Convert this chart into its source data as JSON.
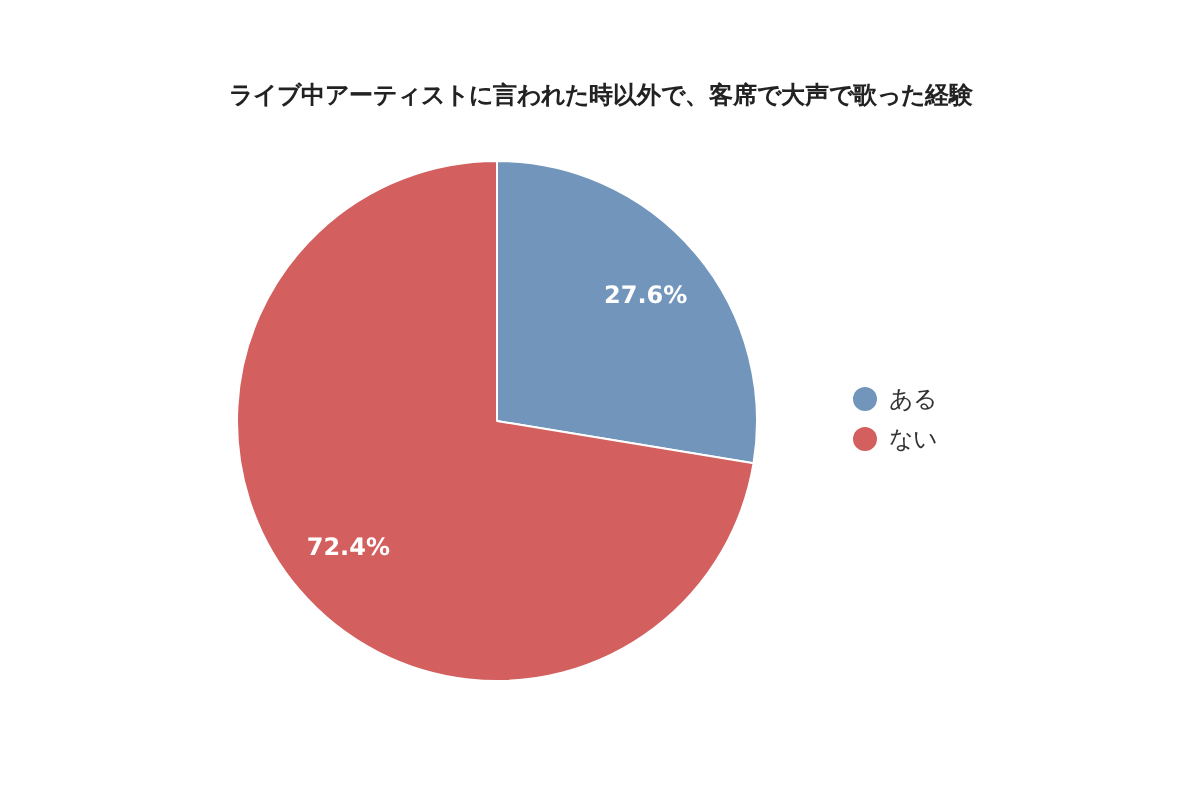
{
  "chart_data": {
    "type": "pie",
    "title": "ライブ中アーティストに言われた時以外で、客席で大声で歌った経験",
    "categories": [
      "ある",
      "ない"
    ],
    "values": [
      27.6,
      72.4
    ],
    "colors": [
      "#7295bb",
      "#d35f5f"
    ],
    "value_labels": [
      "27.6%",
      "72.4%"
    ],
    "legend": "right"
  }
}
